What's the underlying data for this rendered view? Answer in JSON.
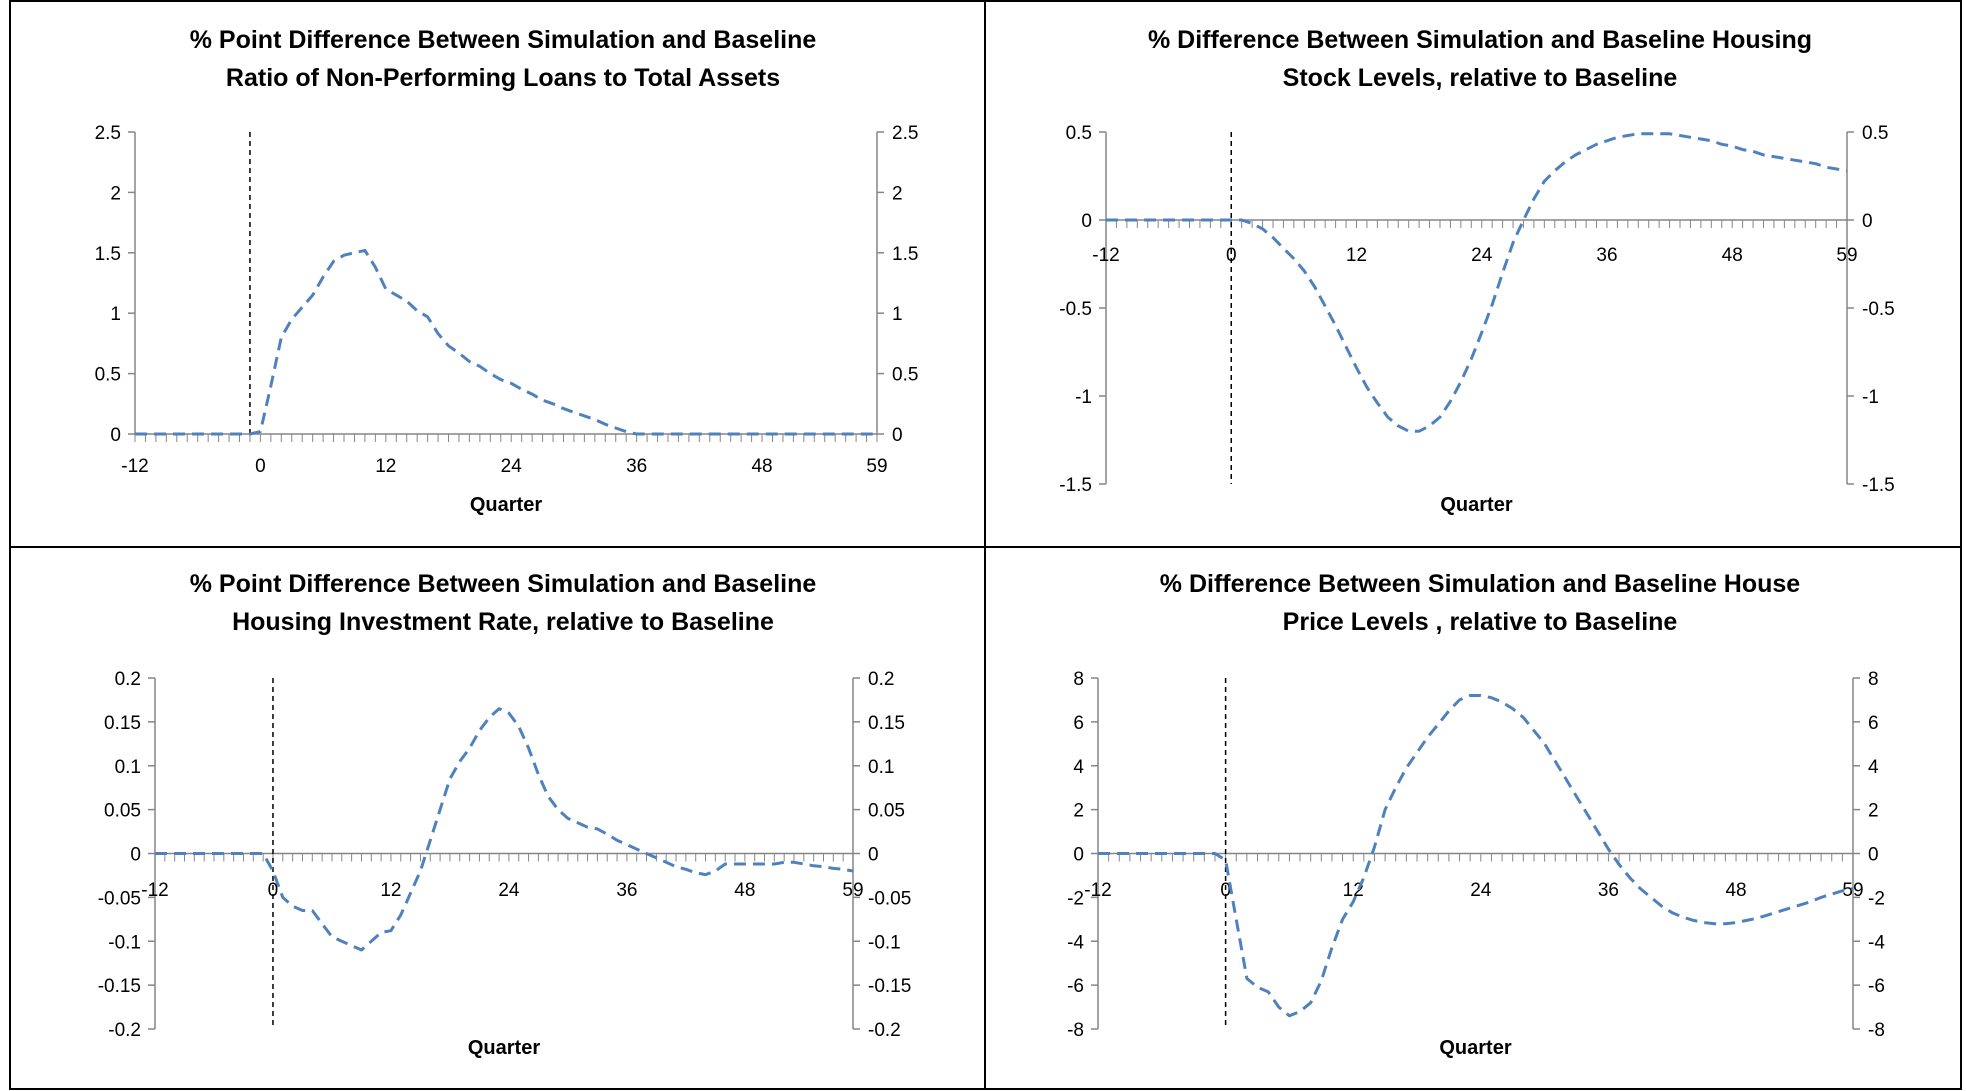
{
  "chart_data": [
    {
      "type": "line",
      "title_lines": [
        "% Point Difference Between Simulation and Baseline",
        "Ratio of Non-Performing Loans to Total  Assets"
      ],
      "xlabel": "Quarter",
      "ylabel": "",
      "xlim": [
        -12,
        59
      ],
      "x_ticks": [
        -12,
        0,
        12,
        24,
        36,
        48,
        59
      ],
      "ylim": [
        0,
        2.5
      ],
      "y_ticks": [
        0,
        0.5,
        1,
        1.5,
        2,
        2.5
      ],
      "y_tick_labels": [
        "0",
        "0.5",
        "1",
        "1.5",
        "2",
        "2.5"
      ],
      "shock_x": -1,
      "series": [
        {
          "x": [
            -12,
            -10,
            -8,
            -6,
            -4,
            -2,
            -1,
            0,
            1,
            2,
            3,
            4,
            5,
            6,
            7,
            8,
            9,
            10,
            11,
            12,
            13,
            14,
            15,
            16,
            17,
            18,
            19,
            20,
            21,
            22,
            23,
            24,
            25,
            26,
            27,
            28,
            29,
            30,
            31,
            32,
            33,
            34,
            35,
            36,
            37,
            38,
            39,
            40,
            41,
            42,
            43,
            44,
            45,
            46,
            47,
            48,
            49,
            50,
            51,
            52,
            53,
            54,
            55,
            56,
            57,
            58,
            59
          ],
          "y": [
            0,
            0,
            0,
            0,
            0,
            0,
            0,
            0.02,
            0.4,
            0.8,
            0.95,
            1.05,
            1.15,
            1.3,
            1.43,
            1.48,
            1.5,
            1.52,
            1.38,
            1.2,
            1.15,
            1.1,
            1.02,
            0.97,
            0.83,
            0.73,
            0.67,
            0.6,
            0.56,
            0.5,
            0.45,
            0.42,
            0.37,
            0.33,
            0.28,
            0.25,
            0.21,
            0.18,
            0.15,
            0.12,
            0.08,
            0.05,
            0.02,
            0,
            0,
            0,
            0,
            0,
            0,
            0,
            0,
            0,
            0,
            0,
            0,
            0,
            0,
            0,
            0,
            0,
            0,
            0,
            0,
            0,
            0,
            0,
            0
          ]
        }
      ]
    },
    {
      "type": "line",
      "title_lines": [
        "% Difference Between Simulation and Baseline Housing",
        "Stock Levels, relative to Baseline"
      ],
      "xlabel": "Quarter",
      "ylabel": "",
      "xlim": [
        -12,
        59
      ],
      "x_ticks": [
        -12,
        0,
        12,
        24,
        36,
        48,
        59
      ],
      "ylim": [
        -1.5,
        0.5
      ],
      "y_ticks": [
        -1.5,
        -1,
        -0.5,
        0,
        0.5
      ],
      "y_tick_labels": [
        "-1.5",
        "-1",
        "-0.5",
        "0",
        "0.5"
      ],
      "shock_x": 0,
      "series": [
        {
          "x": [
            -12,
            -8,
            -4,
            -1,
            0,
            1,
            2,
            3,
            4,
            5,
            6,
            7,
            8,
            9,
            10,
            11,
            12,
            13,
            14,
            15,
            16,
            17,
            18,
            19,
            20,
            21,
            22,
            23,
            24,
            25,
            26,
            27,
            28,
            29,
            30,
            31,
            32,
            33,
            34,
            35,
            36,
            37,
            38,
            39,
            40,
            41,
            42,
            43,
            44,
            45,
            46,
            47,
            48,
            49,
            50,
            51,
            52,
            53,
            54,
            55,
            56,
            57,
            58,
            59
          ],
          "y": [
            0,
            0,
            0,
            0,
            0,
            0,
            -0.02,
            -0.05,
            -0.1,
            -0.16,
            -0.22,
            -0.29,
            -0.38,
            -0.49,
            -0.6,
            -0.72,
            -0.84,
            -0.95,
            -1.04,
            -1.12,
            -1.17,
            -1.2,
            -1.2,
            -1.17,
            -1.12,
            -1.03,
            -0.92,
            -0.79,
            -0.64,
            -0.48,
            -0.3,
            -0.13,
            0,
            0.12,
            0.22,
            0.28,
            0.33,
            0.37,
            0.4,
            0.43,
            0.45,
            0.47,
            0.48,
            0.49,
            0.49,
            0.49,
            0.49,
            0.48,
            0.47,
            0.46,
            0.45,
            0.43,
            0.42,
            0.4,
            0.39,
            0.37,
            0.36,
            0.35,
            0.34,
            0.33,
            0.32,
            0.3,
            0.29,
            0.28
          ]
        }
      ]
    },
    {
      "type": "line",
      "title_lines": [
        "% Point Difference Between Simulation and Baseline",
        "Housing Investment Rate, relative to Baseline"
      ],
      "xlabel": "Quarter",
      "ylabel": "",
      "xlim": [
        -12,
        59
      ],
      "x_ticks": [
        -12,
        0,
        12,
        24,
        36,
        48,
        59
      ],
      "ylim": [
        -0.2,
        0.2
      ],
      "y_ticks": [
        -0.2,
        -0.15,
        -0.1,
        -0.05,
        0,
        0.05,
        0.1,
        0.15,
        0.2
      ],
      "y_tick_labels": [
        "-0.2",
        "-0.15",
        "-0.1",
        "-0.05",
        "0",
        "0.05",
        "0.1",
        "0.15",
        "0.2"
      ],
      "shock_x": 0,
      "series": [
        {
          "x": [
            -12,
            -8,
            -4,
            -1,
            0,
            1,
            2,
            3,
            4,
            5,
            6,
            7,
            8,
            9,
            10,
            11,
            12,
            13,
            14,
            15,
            16,
            17,
            18,
            19,
            20,
            21,
            22,
            23,
            24,
            25,
            26,
            27,
            28,
            29,
            30,
            31,
            32,
            33,
            34,
            35,
            36,
            37,
            38,
            39,
            40,
            41,
            42,
            43,
            44,
            45,
            46,
            47,
            48,
            49,
            50,
            51,
            52,
            53,
            54,
            55,
            56,
            57,
            58,
            59
          ],
          "y": [
            0,
            0,
            0,
            0,
            -0.02,
            -0.05,
            -0.06,
            -0.065,
            -0.065,
            -0.08,
            -0.095,
            -0.1,
            -0.105,
            -0.11,
            -0.1,
            -0.09,
            -0.088,
            -0.07,
            -0.045,
            -0.02,
            0.015,
            0.05,
            0.085,
            0.105,
            0.12,
            0.14,
            0.155,
            0.165,
            0.16,
            0.145,
            0.12,
            0.09,
            0.065,
            0.05,
            0.04,
            0.035,
            0.03,
            0.028,
            0.022,
            0.015,
            0.01,
            0.005,
            0,
            -0.005,
            -0.01,
            -0.015,
            -0.018,
            -0.022,
            -0.024,
            -0.02,
            -0.012,
            -0.012,
            -0.012,
            -0.012,
            -0.012,
            -0.012,
            -0.01,
            -0.01,
            -0.012,
            -0.014,
            -0.015,
            -0.017,
            -0.018,
            -0.02
          ]
        }
      ]
    },
    {
      "type": "line",
      "title_lines": [
        "% Difference Between Simulation and Baseline House",
        "Price Levels , relative to Baseline"
      ],
      "xlabel": "Quarter",
      "ylabel": "",
      "xlim": [
        -12,
        59
      ],
      "x_ticks": [
        -12,
        0,
        12,
        24,
        36,
        48,
        59
      ],
      "ylim": [
        -8,
        8
      ],
      "y_ticks": [
        -8,
        -6,
        -4,
        -2,
        0,
        2,
        4,
        6,
        8
      ],
      "y_tick_labels": [
        "-8",
        "-6",
        "-4",
        "-2",
        "0",
        "2",
        "4",
        "6",
        "8"
      ],
      "shock_x": 0,
      "series": [
        {
          "x": [
            -12,
            -8,
            -4,
            -1,
            0,
            1,
            2,
            3,
            4,
            5,
            6,
            7,
            8,
            9,
            10,
            11,
            12,
            13,
            14,
            15,
            16,
            17,
            18,
            19,
            20,
            21,
            22,
            23,
            24,
            25,
            26,
            27,
            28,
            29,
            30,
            31,
            32,
            33,
            34,
            35,
            36,
            37,
            38,
            39,
            40,
            41,
            42,
            43,
            44,
            45,
            46,
            47,
            48,
            49,
            50,
            51,
            52,
            53,
            54,
            55,
            56,
            57,
            58,
            59
          ],
          "y": [
            0,
            0,
            0,
            0,
            -0.3,
            -3,
            -5.7,
            -6.1,
            -6.3,
            -7,
            -7.4,
            -7.2,
            -6.8,
            -5.8,
            -4.3,
            -3,
            -2.2,
            -1.1,
            0.3,
            2,
            3,
            3.9,
            4.6,
            5.3,
            5.9,
            6.5,
            7,
            7.2,
            7.2,
            7.1,
            6.9,
            6.6,
            6.2,
            5.6,
            5,
            4.2,
            3.4,
            2.6,
            1.8,
            1,
            0.2,
            -0.5,
            -1.1,
            -1.6,
            -2,
            -2.4,
            -2.7,
            -2.9,
            -3.05,
            -3.15,
            -3.2,
            -3.2,
            -3.15,
            -3.05,
            -2.95,
            -2.8,
            -2.65,
            -2.5,
            -2.35,
            -2.2,
            -2,
            -1.85,
            -1.7,
            -1.6
          ]
        }
      ]
    }
  ],
  "colors": {
    "series_line": "#4f81bd",
    "axis": "#868686",
    "panel_border": "#000000",
    "shock_line": "#000000"
  }
}
